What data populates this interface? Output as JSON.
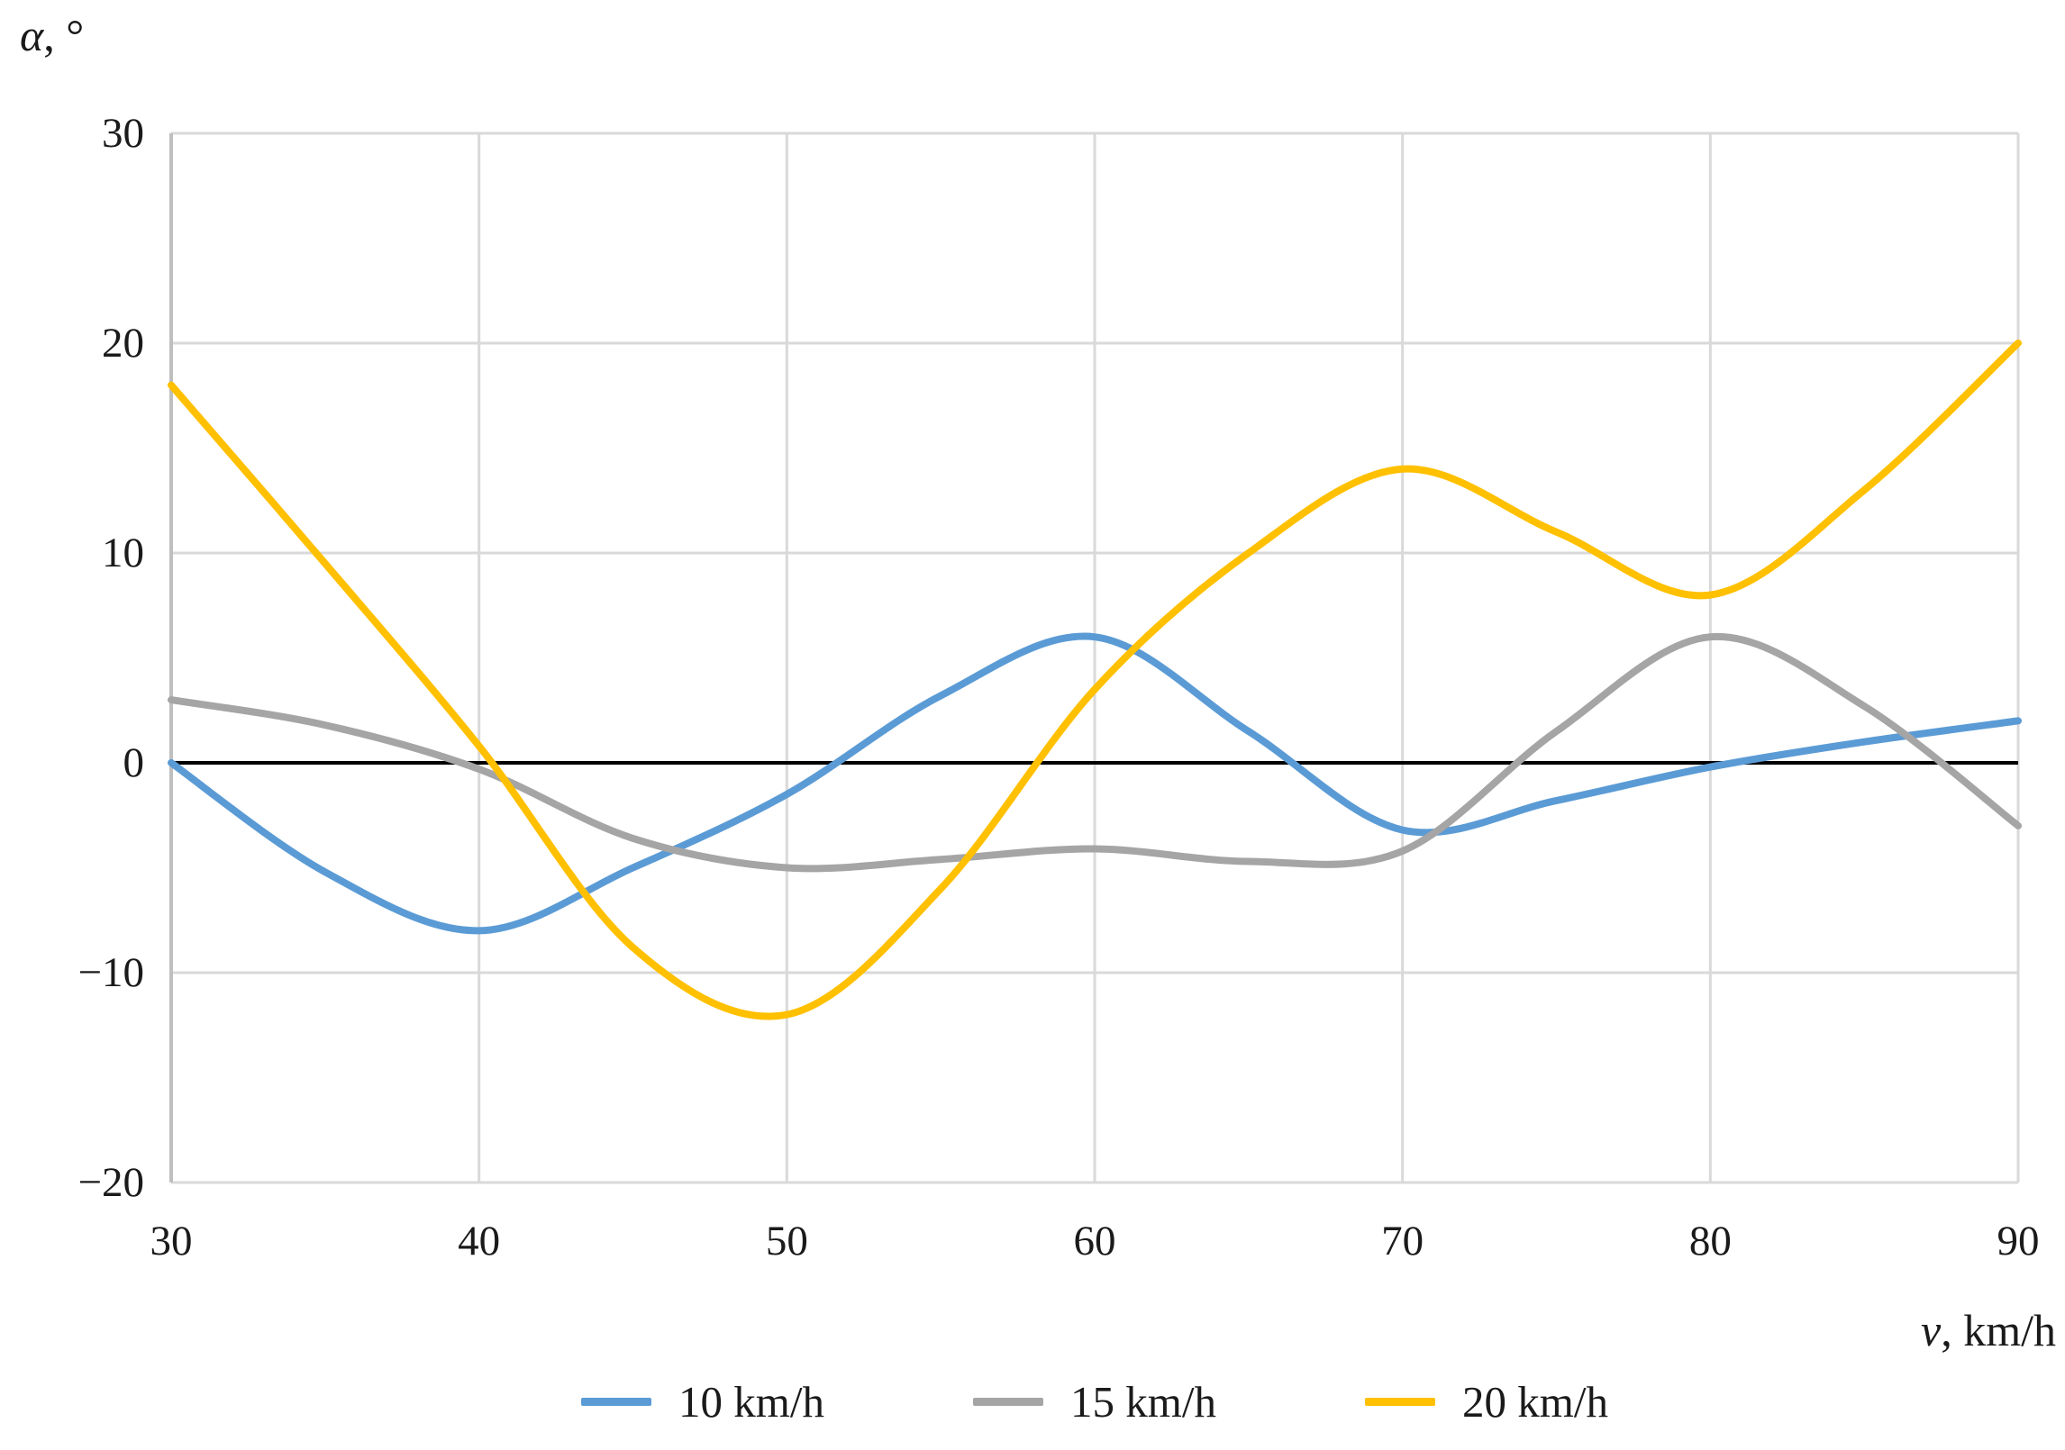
{
  "figure": {
    "y_axis": {
      "title_symbol": "α",
      "title_rest": ", °",
      "tick_labels": [
        "30",
        "20",
        "10",
        "0",
        "−10",
        "−20"
      ],
      "tick_values": [
        30,
        20,
        10,
        0,
        -10,
        -20
      ]
    },
    "x_axis": {
      "title_symbol": "v",
      "title_rest": ", km/h",
      "tick_labels": [
        "30",
        "40",
        "50",
        "60",
        "70",
        "80",
        "90"
      ],
      "tick_values": [
        30,
        40,
        50,
        60,
        70,
        80,
        90
      ]
    },
    "legend_items": [
      {
        "label": "10 km/h",
        "color": "#5B9BD5"
      },
      {
        "label": "15 km/h",
        "color": "#A5A5A5"
      },
      {
        "label": "20 km/h",
        "color": "#FFC000"
      }
    ],
    "colors": {
      "gridline": "#D9D9D9",
      "axis_frame": "#BFBFBF",
      "zero_line": "#000000",
      "text": "#1a1a1a"
    }
  },
  "chart_data": {
    "type": "line",
    "title": "",
    "xlabel": "v, km/h",
    "ylabel": "α, °",
    "xlim": [
      30,
      90
    ],
    "ylim": [
      -20,
      30
    ],
    "grid": true,
    "zero_line": true,
    "legend_position": "bottom",
    "x": [
      30,
      35,
      40,
      45,
      50,
      55,
      60,
      65,
      70,
      75,
      80,
      85,
      90
    ],
    "series": [
      {
        "name": "10 km/h",
        "color": "#5B9BD5",
        "values": [
          0,
          -5.2,
          -8,
          -5,
          -1.5,
          3.2,
          6,
          1.5,
          -3.2,
          -1.8,
          -0.2,
          1,
          2
        ]
      },
      {
        "name": "15 km/h",
        "color": "#A5A5A5",
        "values": [
          3,
          1.8,
          -0.3,
          -3.6,
          -5,
          -4.6,
          -4.1,
          -4.7,
          -4.2,
          1.5,
          6,
          2.7,
          -3
        ]
      },
      {
        "name": "20 km/h",
        "color": "#FFC000",
        "values": [
          18,
          9.5,
          0.8,
          -8.8,
          -12,
          -6,
          3.5,
          10,
          14,
          11,
          8,
          13,
          20
        ]
      }
    ]
  }
}
